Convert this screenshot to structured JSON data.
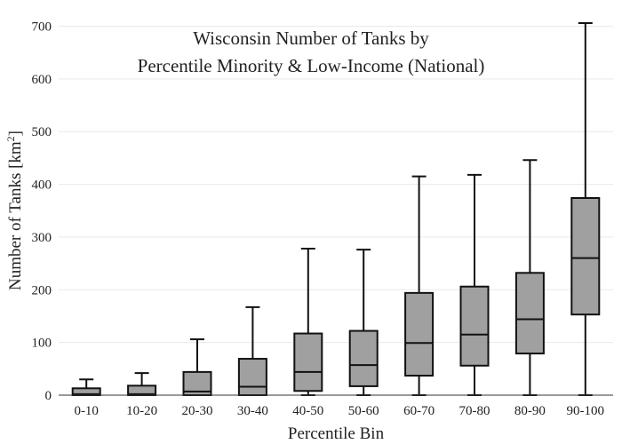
{
  "chart_data": {
    "type": "box",
    "title_line1": "Wisconsin Number of Tanks by",
    "title_line2": "Percentile Minority & Low-Income (National)",
    "xlabel": "Percentile Bin",
    "ylabel_main": "Number of Tanks  [km",
    "ylabel_sup": "2",
    "ylabel_end": "]",
    "ylim": [
      0,
      710
    ],
    "yticks": [
      0,
      100,
      200,
      300,
      400,
      500,
      600,
      700
    ],
    "grid": true,
    "categories": [
      "0-10",
      "10-20",
      "20-30",
      "30-40",
      "40-50",
      "50-60",
      "60-70",
      "70-80",
      "80-90",
      "90-100"
    ],
    "boxes": [
      {
        "min": 0,
        "q1": 0,
        "median": 2,
        "q3": 13,
        "max": 30
      },
      {
        "min": 0,
        "q1": 0,
        "median": 2,
        "q3": 18,
        "max": 42
      },
      {
        "min": 0,
        "q1": 0,
        "median": 7,
        "q3": 44,
        "max": 106
      },
      {
        "min": 0,
        "q1": 0,
        "median": 16,
        "q3": 69,
        "max": 167
      },
      {
        "min": 0,
        "q1": 8,
        "median": 44,
        "q3": 117,
        "max": 278
      },
      {
        "min": 0,
        "q1": 17,
        "median": 57,
        "q3": 122,
        "max": 276
      },
      {
        "min": 0,
        "q1": 37,
        "median": 99,
        "q3": 194,
        "max": 415
      },
      {
        "min": 0,
        "q1": 56,
        "median": 115,
        "q3": 206,
        "max": 418
      },
      {
        "min": 0,
        "q1": 79,
        "median": 144,
        "q3": 232,
        "max": 446
      },
      {
        "min": 0,
        "q1": 153,
        "median": 260,
        "q3": 374,
        "max": 706
      }
    ],
    "colors": {
      "box_fill": "#a0a0a0",
      "box_stroke": "#111111",
      "grid": "#e9e9e9"
    }
  }
}
